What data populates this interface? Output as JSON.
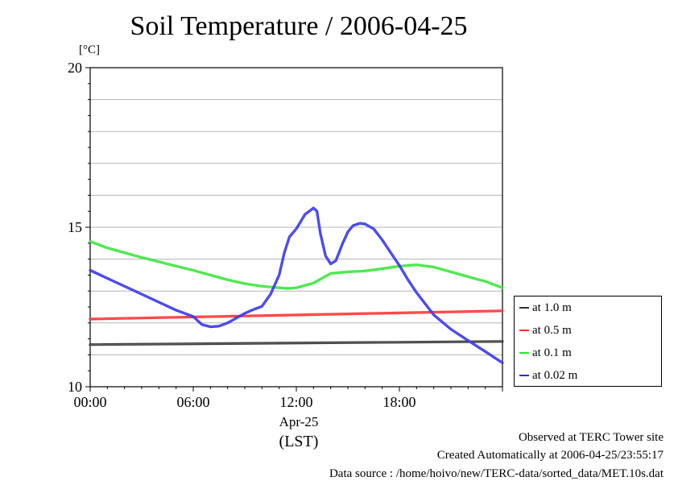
{
  "title": "Soil Temperature / 2006-04-25",
  "unit_label": "[°C]",
  "x_date_label": "Apr-25",
  "x_axis_label": "(LST)",
  "footer": {
    "line1": "Observed at TERC Tower site",
    "line2": "Created Automatically at 2006-04-25/23:55:17",
    "line3": "Data source : /home/hoivo/new/TERC-data/sorted_data/MET.10s.dat"
  },
  "legend": [
    {
      "label": "at 1.0 m",
      "color": "#333333"
    },
    {
      "label": "at 0.5 m",
      "color": "#ff2a2a"
    },
    {
      "label": "at 0.1 m",
      "color": "#2ee62e"
    },
    {
      "label": "at 0.02 m",
      "color": "#2b2bf0"
    }
  ],
  "chart_data": {
    "type": "line",
    "title": "Soil Temperature / 2006-04-25",
    "ylabel": "[°C]",
    "xlabel": "(LST)",
    "xlim": [
      0,
      24
    ],
    "ylim": [
      10,
      20
    ],
    "x_tick_values": [
      0,
      6,
      12,
      18
    ],
    "x_tick_labels": [
      "00:00",
      "06:00",
      "12:00",
      "18:00"
    ],
    "y_tick_labels": [
      "10",
      "15",
      "20"
    ],
    "grid": true,
    "legend_position": "right",
    "series": [
      {
        "name": "at 1.0 m",
        "color": "#333333",
        "x": [
          0,
          24
        ],
        "y": [
          11.32,
          11.42
        ]
      },
      {
        "name": "at 0.5 m",
        "color": "#ff2a2a",
        "x": [
          0,
          24
        ],
        "y": [
          12.12,
          12.38
        ]
      },
      {
        "name": "at 0.1 m",
        "color": "#2ee62e",
        "x": [
          0,
          1,
          2,
          3,
          4,
          5,
          6,
          7,
          8,
          9,
          10,
          11,
          11.5,
          12,
          13,
          14,
          15,
          16,
          17,
          18,
          19,
          20,
          21,
          22,
          23,
          24
        ],
        "y": [
          14.55,
          14.35,
          14.2,
          14.05,
          13.92,
          13.78,
          13.65,
          13.5,
          13.35,
          13.23,
          13.15,
          13.1,
          13.08,
          13.1,
          13.25,
          13.55,
          13.6,
          13.63,
          13.7,
          13.78,
          13.82,
          13.75,
          13.6,
          13.45,
          13.3,
          13.1
        ]
      },
      {
        "name": "at 0.02 m",
        "color": "#2b2bf0",
        "x": [
          0,
          1,
          2,
          3,
          4,
          5,
          6,
          6.5,
          7,
          7.5,
          8,
          8.5,
          9,
          9.5,
          10,
          10.5,
          11,
          11.3,
          11.6,
          12,
          12.5,
          13,
          13.2,
          13.4,
          13.7,
          14,
          14.3,
          14.7,
          15,
          15.3,
          15.7,
          16,
          16.5,
          17,
          17.5,
          18,
          18.5,
          19,
          19.5,
          20,
          21,
          22,
          23,
          24
        ],
        "y": [
          13.65,
          13.4,
          13.15,
          12.9,
          12.65,
          12.4,
          12.2,
          11.95,
          11.88,
          11.9,
          12.0,
          12.15,
          12.3,
          12.42,
          12.52,
          12.9,
          13.5,
          14.2,
          14.7,
          14.95,
          15.4,
          15.6,
          15.5,
          14.8,
          14.1,
          13.85,
          13.95,
          14.5,
          14.85,
          15.05,
          15.12,
          15.1,
          14.95,
          14.6,
          14.2,
          13.8,
          13.35,
          12.95,
          12.6,
          12.25,
          11.8,
          11.45,
          11.1,
          10.75
        ]
      }
    ]
  }
}
